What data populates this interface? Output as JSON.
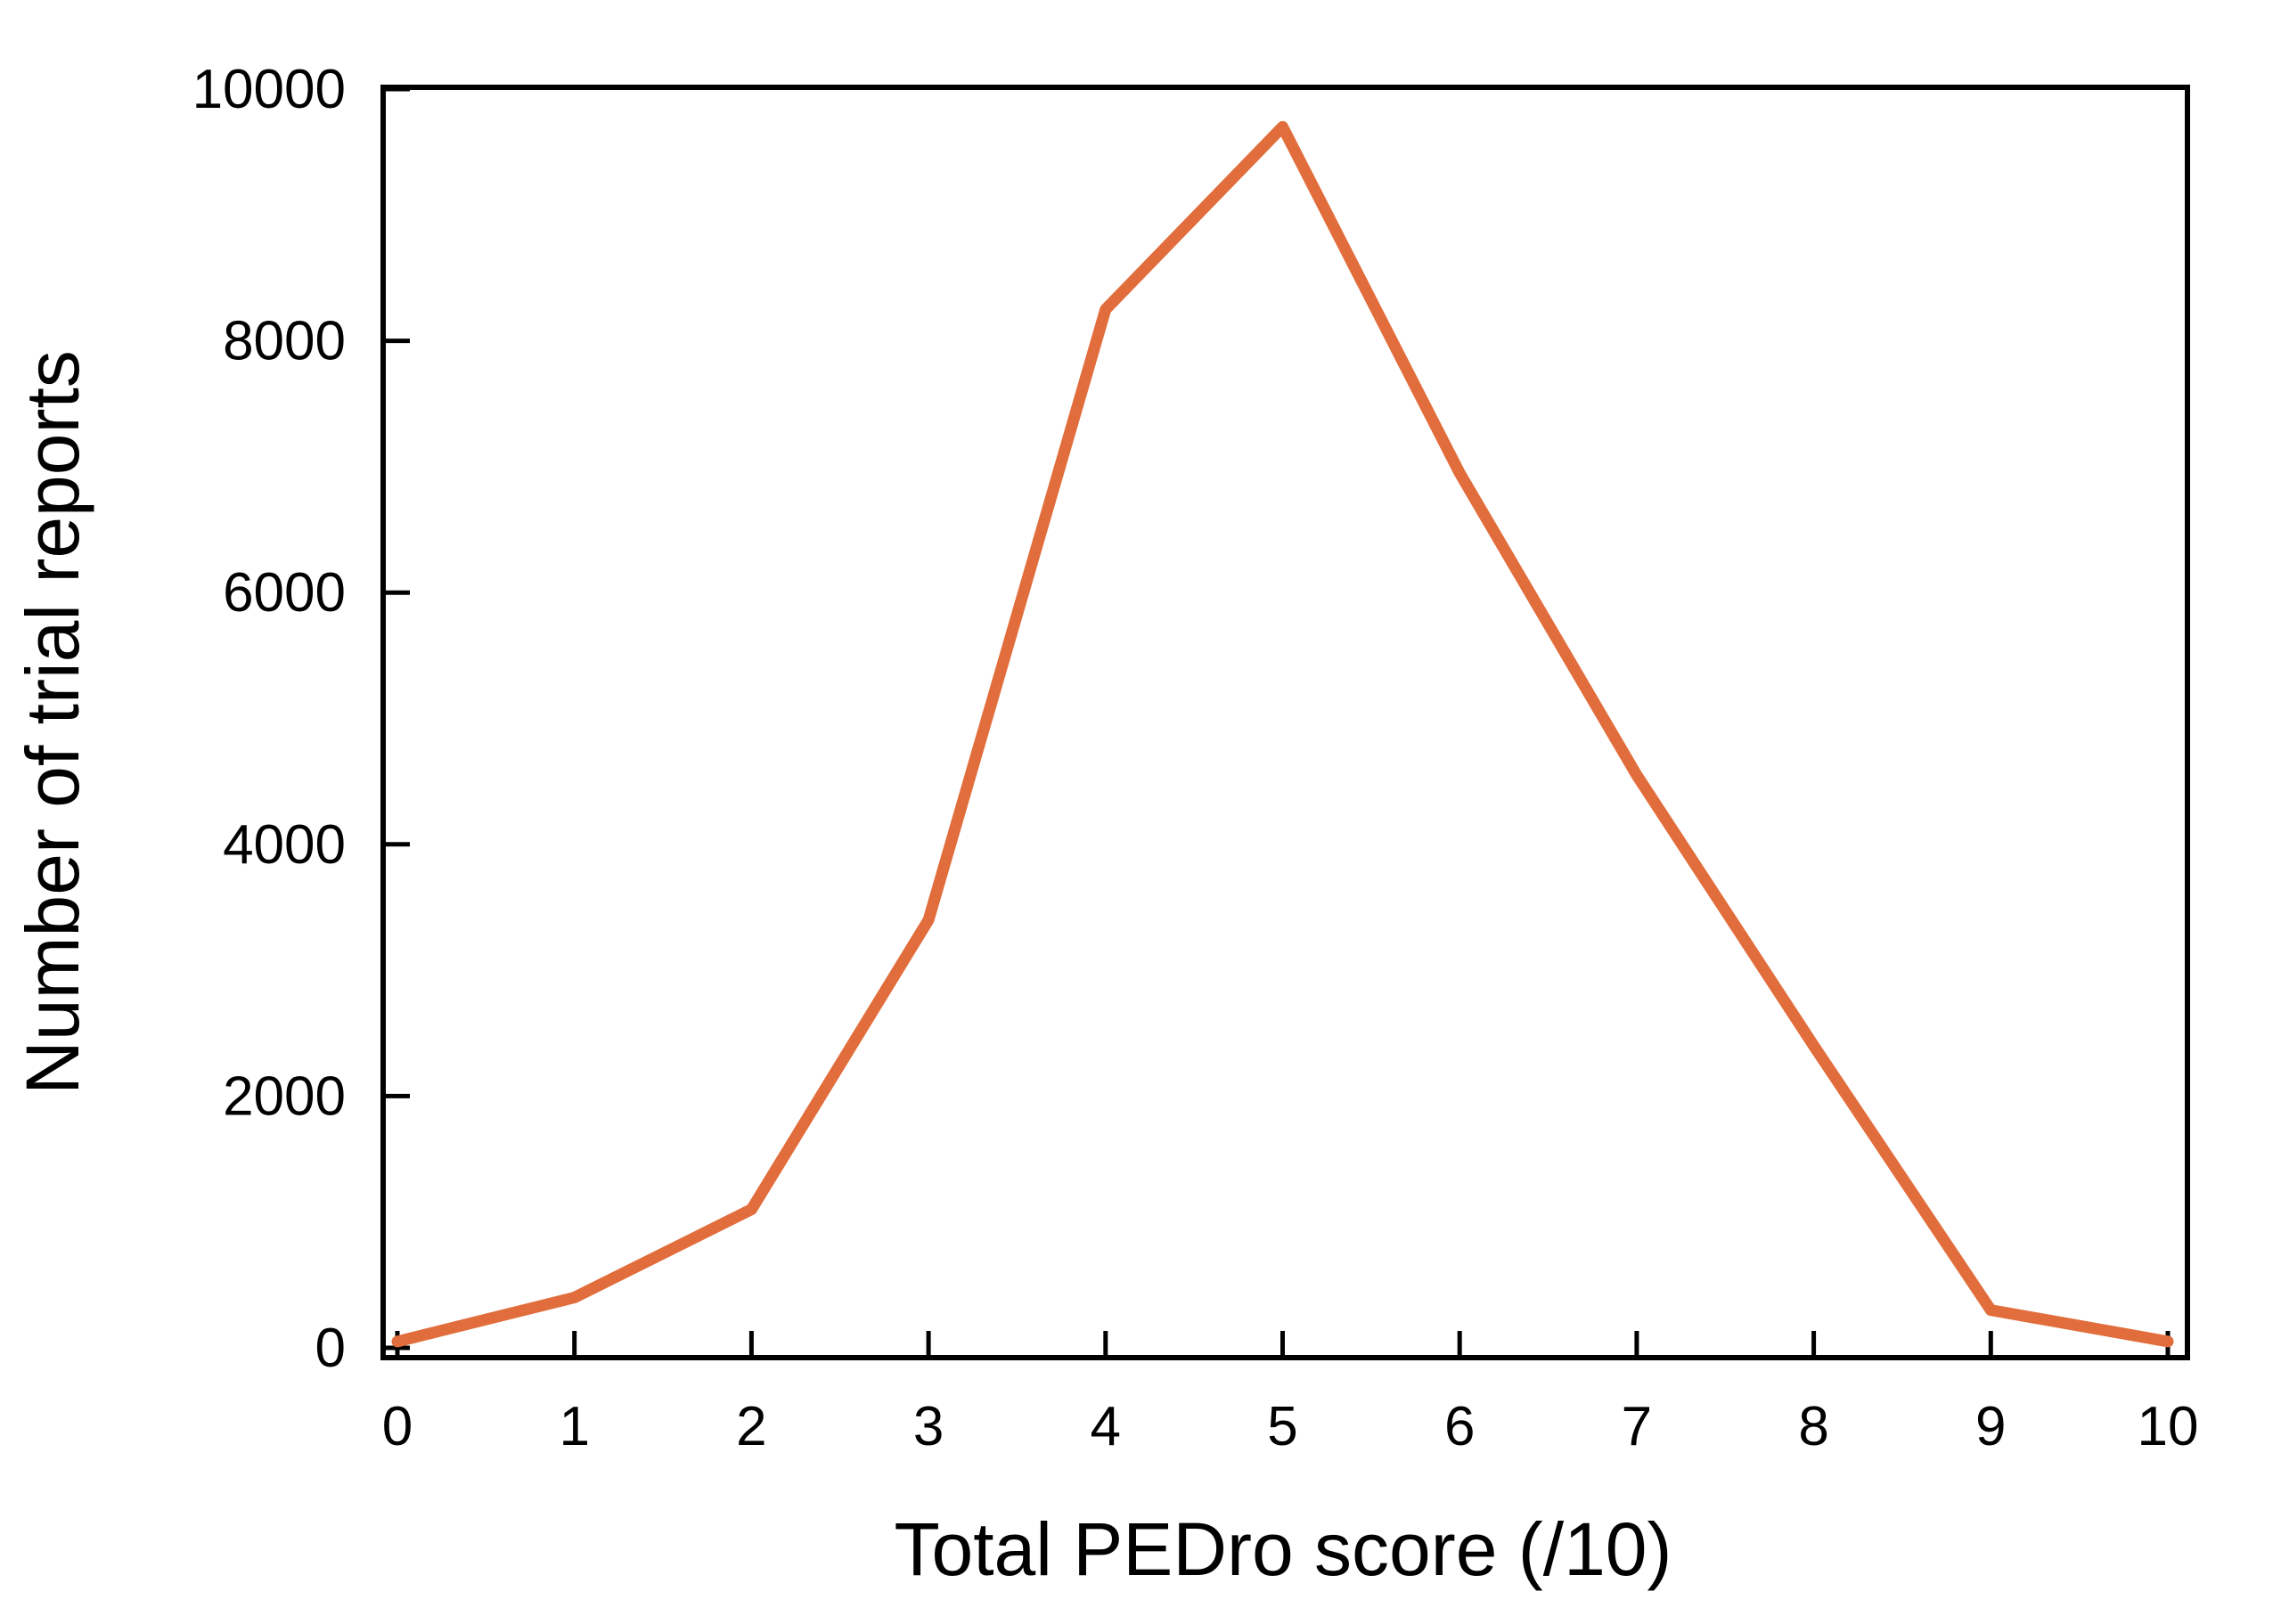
{
  "figure": {
    "background": "#FFFFFF"
  },
  "chart_data": {
    "type": "line",
    "title": "",
    "xlabel": "Total PEDro score (/10)",
    "ylabel": "Number of trial reports",
    "x": [
      0,
      1,
      2,
      3,
      4,
      5,
      6,
      7,
      8,
      9,
      10
    ],
    "series": [
      {
        "name": "Number of trial reports",
        "values": [
          50,
          400,
          1100,
          3400,
          8250,
          9700,
          6950,
          4550,
          2400,
          300,
          50
        ]
      }
    ],
    "xlim": [
      0,
      10
    ],
    "ylim": [
      0,
      10000
    ],
    "x_tick_labels": [
      "0",
      "1",
      "2",
      "3",
      "4",
      "5",
      "6",
      "7",
      "8",
      "9",
      "10"
    ],
    "y_ticks": [
      0,
      2000,
      4000,
      6000,
      8000,
      10000
    ],
    "y_tick_labels": [
      "0",
      "2000",
      "4000",
      "6000",
      "8000",
      "10000"
    ],
    "grid": false,
    "legend": false,
    "tick_direction": "in",
    "colors": {
      "line": "#E26D3C",
      "axis": "#000000",
      "text": "#000000",
      "background": "#FFFFFF"
    }
  }
}
